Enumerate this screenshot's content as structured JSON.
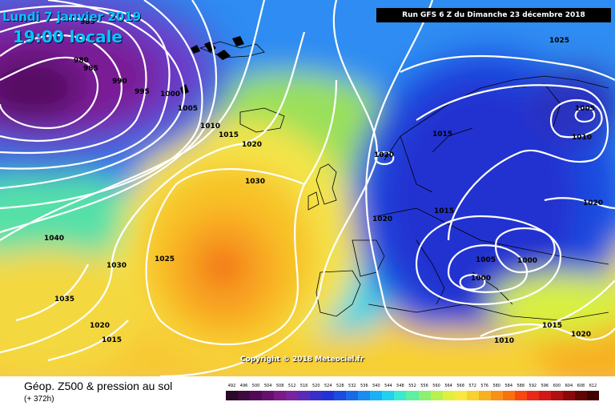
{
  "header": {
    "date": "Lundi 7 janvier 2019",
    "time": "19:00 locale",
    "run": "Run GFS 6 Z du Dimanche 23 décembre 2018"
  },
  "copyright": "Copyright © 2018 Meteociel.fr",
  "footer": {
    "title": "Géop. Z500 & pression au sol",
    "subtitle": "(+ 372h)"
  },
  "legend": {
    "values": [
      "492",
      "496",
      "500",
      "504",
      "508",
      "512",
      "516",
      "520",
      "524",
      "528",
      "532",
      "536",
      "540",
      "544",
      "548",
      "552",
      "556",
      "560",
      "564",
      "568",
      "572",
      "576",
      "580",
      "584",
      "588",
      "592",
      "596",
      "600",
      "604",
      "608",
      "612"
    ],
    "colors": [
      "#2a0a2a",
      "#3d0a3d",
      "#520a55",
      "#66106e",
      "#7a1a87",
      "#7a22a0",
      "#5c2bb5",
      "#3a2ec8",
      "#2233d6",
      "#1c4be0",
      "#1a6ae8",
      "#1a8cf0",
      "#1ab0f5",
      "#22d0f0",
      "#3ce8d0",
      "#5ef0a0",
      "#8ef070",
      "#b8f050",
      "#e0f040",
      "#f8e840",
      "#f8d030",
      "#f8b020",
      "#f89018",
      "#f87010",
      "#f84810",
      "#e82818",
      "#d01818",
      "#b01010",
      "#8a0808",
      "#600404",
      "#400000"
    ]
  },
  "isobars": [
    "985",
    "980",
    "985",
    "990",
    "995",
    "1000",
    "1005",
    "1010",
    "1015",
    "1020",
    "1030",
    "1025",
    "1040",
    "1030",
    "1035",
    "1020",
    "1015",
    "1025",
    "1020",
    "1020",
    "1015",
    "1005",
    "1000",
    "1000",
    "1005",
    "1010",
    "1015",
    "1020",
    "1010",
    "1015",
    "1020"
  ]
}
